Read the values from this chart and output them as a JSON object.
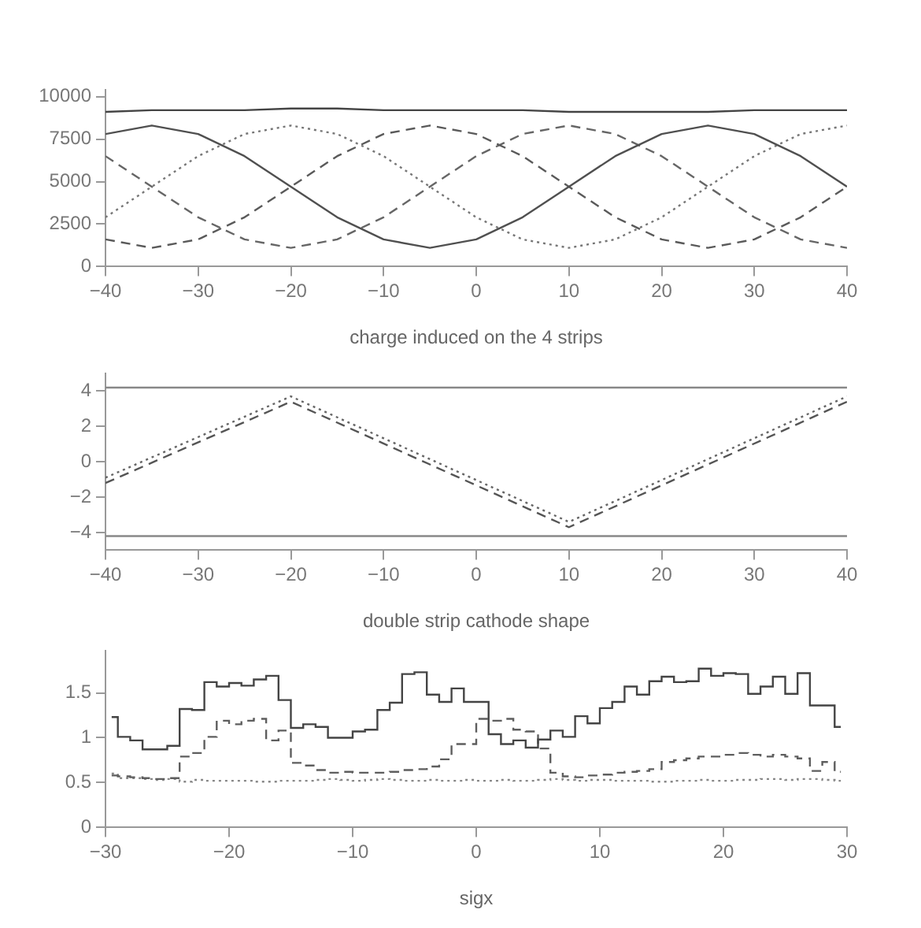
{
  "chart_data": [
    {
      "type": "line",
      "xlabel": "charge induced on the 4 strips",
      "x": [
        -40,
        -35,
        -30,
        -25,
        -20,
        -15,
        -10,
        -5,
        0,
        5,
        10,
        15,
        20,
        25,
        30,
        35,
        40
      ],
      "xlim": [
        -40,
        40
      ],
      "xticks": [
        -40,
        -30,
        -20,
        -10,
        0,
        10,
        20,
        30,
        40
      ],
      "ylim": [
        0,
        10400
      ],
      "yticks": [
        0,
        2500,
        5000,
        7500,
        10000
      ],
      "grid": false,
      "legend": false,
      "series": [
        {
          "color": "#444444",
          "line_style": "solid",
          "values": [
            9100,
            9200,
            9200,
            9200,
            9300,
            9300,
            9200,
            9200,
            9200,
            9200,
            9100,
            9100,
            9100,
            9100,
            9200,
            9200,
            9200
          ]
        },
        {
          "color": "#505050",
          "line_style": "solid",
          "values": [
            7800,
            8300,
            7800,
            6500,
            4700,
            2900,
            1600,
            1100,
            1600,
            2900,
            4700,
            6500,
            7800,
            8300,
            7800,
            6500,
            4700
          ]
        },
        {
          "color": "#777777",
          "line_style": "dotted",
          "values": [
            2900,
            4700,
            6500,
            7800,
            8300,
            7800,
            6500,
            4700,
            2900,
            1600,
            1100,
            1600,
            2900,
            4700,
            6500,
            7800,
            8300
          ]
        },
        {
          "color": "#5a5a5a",
          "line_style": "dashed",
          "values": [
            1600,
            1100,
            1600,
            2900,
            4700,
            6500,
            7800,
            8300,
            7800,
            6500,
            4700,
            2900,
            1600,
            1100,
            1600,
            2900,
            4700
          ]
        },
        {
          "color": "#666666",
          "line_style": "dashed",
          "values": [
            6500,
            4700,
            2900,
            1600,
            1100,
            1600,
            2900,
            4700,
            6500,
            7800,
            8300,
            7800,
            6500,
            4700,
            2900,
            1600,
            1100
          ]
        }
      ]
    },
    {
      "type": "line",
      "xlabel": "double strip cathode shape",
      "x": [
        -40,
        -20,
        10,
        40
      ],
      "xlim": [
        -40,
        40
      ],
      "xticks": [
        -40,
        -30,
        -20,
        -10,
        0,
        10,
        20,
        30,
        40
      ],
      "ylim": [
        -5,
        5
      ],
      "yticks": [
        -4,
        -2,
        0,
        2,
        4
      ],
      "grid": false,
      "legend": false,
      "ref_lines": [
        {
          "axis": "y",
          "value": 4.2,
          "color": "#888888"
        },
        {
          "axis": "y",
          "value": -4.2,
          "color": "#888888"
        }
      ],
      "series": [
        {
          "color": "#666666",
          "line_style": "dotted",
          "values": [
            -0.9,
            3.7,
            -3.4,
            3.7
          ]
        },
        {
          "color": "#555555",
          "line_style": "dashed",
          "values": [
            -1.2,
            3.4,
            -3.7,
            3.4
          ]
        }
      ]
    },
    {
      "type": "step",
      "xlabel": "sigx",
      "x": [
        -29.5,
        -28.5,
        -27.5,
        -26.5,
        -25.5,
        -24.5,
        -23.5,
        -22.5,
        -21.5,
        -20.5,
        -19.5,
        -18.5,
        -17.5,
        -16.5,
        -15.5,
        -14.5,
        -13.5,
        -12.5,
        -11.5,
        -10.5,
        -9.5,
        -8.5,
        -7.5,
        -6.5,
        -5.5,
        -4.5,
        -3.5,
        -2.5,
        -1.5,
        -0.5,
        0.5,
        1.5,
        2.5,
        3.5,
        4.5,
        5.5,
        6.5,
        7.5,
        8.5,
        9.5,
        10.5,
        11.5,
        12.5,
        13.5,
        14.5,
        15.5,
        16.5,
        17.5,
        18.5,
        19.5,
        20.5,
        21.5,
        22.5,
        23.5,
        24.5,
        25.5,
        26.5,
        27.5,
        28.5,
        29.5
      ],
      "xlim": [
        -30,
        30
      ],
      "xticks": [
        -30,
        -20,
        -10,
        0,
        10,
        20,
        30
      ],
      "ylim": [
        0,
        1.97
      ],
      "yticks": [
        0,
        0.5,
        1,
        1.5
      ],
      "grid": false,
      "legend": false,
      "series": [
        {
          "color": "#444444",
          "line_style": "solid",
          "values": [
            1.23,
            1.01,
            0.97,
            0.87,
            0.87,
            0.91,
            1.32,
            1.31,
            1.62,
            1.57,
            1.61,
            1.58,
            1.65,
            1.69,
            1.42,
            1.11,
            1.15,
            1.12,
            1.0,
            1.0,
            1.07,
            1.09,
            1.31,
            1.39,
            1.71,
            1.73,
            1.48,
            1.4,
            1.55,
            1.4,
            1.4,
            1.04,
            0.93,
            0.97,
            0.89,
            0.98,
            1.08,
            1.01,
            1.24,
            1.16,
            1.33,
            1.4,
            1.57,
            1.48,
            1.63,
            1.68,
            1.62,
            1.63,
            1.77,
            1.69,
            1.72,
            1.71,
            1.49,
            1.57,
            1.68,
            1.49,
            1.72,
            1.36,
            1.36,
            1.12
          ]
        },
        {
          "color": "#5e5e5e",
          "line_style": "dashed",
          "values": [
            0.58,
            0.57,
            0.56,
            0.55,
            0.54,
            0.55,
            0.79,
            0.83,
            1.01,
            1.19,
            1.15,
            1.19,
            1.21,
            0.97,
            1.08,
            0.72,
            0.69,
            0.64,
            0.61,
            0.62,
            0.61,
            0.61,
            0.61,
            0.62,
            0.64,
            0.65,
            0.68,
            0.76,
            0.93,
            0.93,
            1.21,
            1.19,
            1.21,
            1.09,
            1.07,
            0.88,
            0.61,
            0.57,
            0.56,
            0.58,
            0.59,
            0.61,
            0.62,
            0.63,
            0.65,
            0.73,
            0.75,
            0.77,
            0.79,
            0.79,
            0.81,
            0.83,
            0.81,
            0.79,
            0.81,
            0.79,
            0.77,
            0.63,
            0.73,
            0.62
          ]
        },
        {
          "color": "#888888",
          "line_style": "dotted",
          "values": [
            0.6,
            0.55,
            0.55,
            0.54,
            0.53,
            0.54,
            0.51,
            0.53,
            0.52,
            0.52,
            0.52,
            0.52,
            0.51,
            0.51,
            0.52,
            0.52,
            0.52,
            0.53,
            0.54,
            0.53,
            0.52,
            0.53,
            0.54,
            0.53,
            0.52,
            0.52,
            0.53,
            0.52,
            0.52,
            0.53,
            0.52,
            0.52,
            0.53,
            0.52,
            0.52,
            0.53,
            0.54,
            0.53,
            0.52,
            0.53,
            0.53,
            0.52,
            0.52,
            0.52,
            0.51,
            0.51,
            0.52,
            0.52,
            0.53,
            0.52,
            0.52,
            0.53,
            0.53,
            0.54,
            0.54,
            0.53,
            0.54,
            0.54,
            0.53,
            0.52
          ]
        }
      ]
    }
  ]
}
